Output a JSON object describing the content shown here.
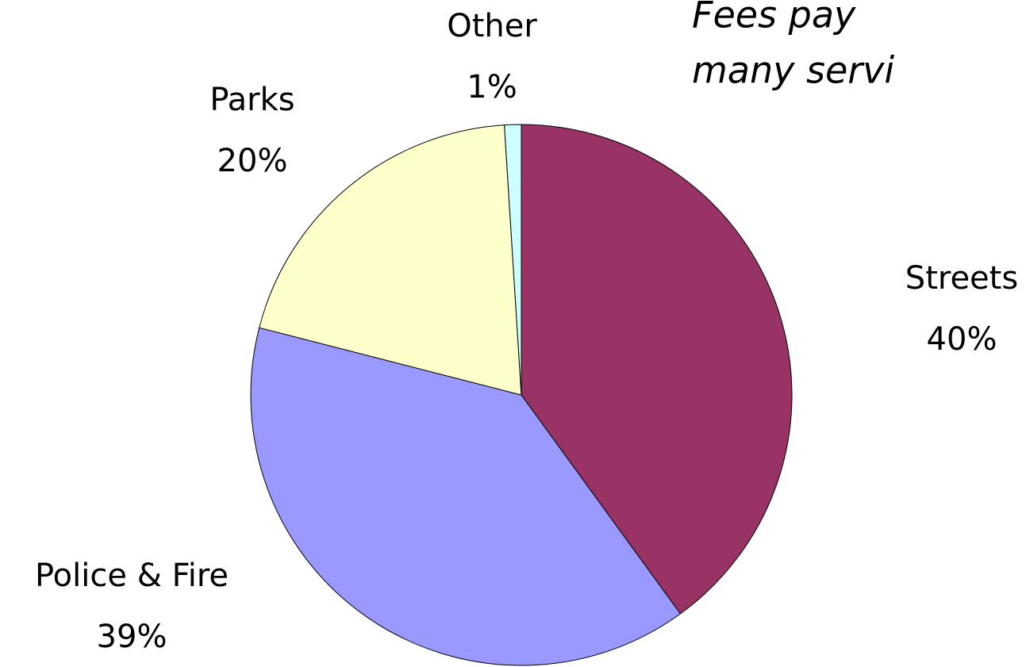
{
  "chart_data": {
    "type": "pie",
    "title_lines": [
      "Fees pay",
      "many servi"
    ],
    "categories": [
      "Streets",
      "Police & Fire",
      "Parks",
      "Other"
    ],
    "values": [
      40,
      39,
      20,
      1
    ],
    "value_labels": [
      "40%",
      "39%",
      "20%",
      "1%"
    ],
    "colors": [
      "#993366",
      "#9999ff",
      "#ffffcc",
      "#ccffff"
    ],
    "start_angle": 0,
    "direction": "clockwise"
  }
}
